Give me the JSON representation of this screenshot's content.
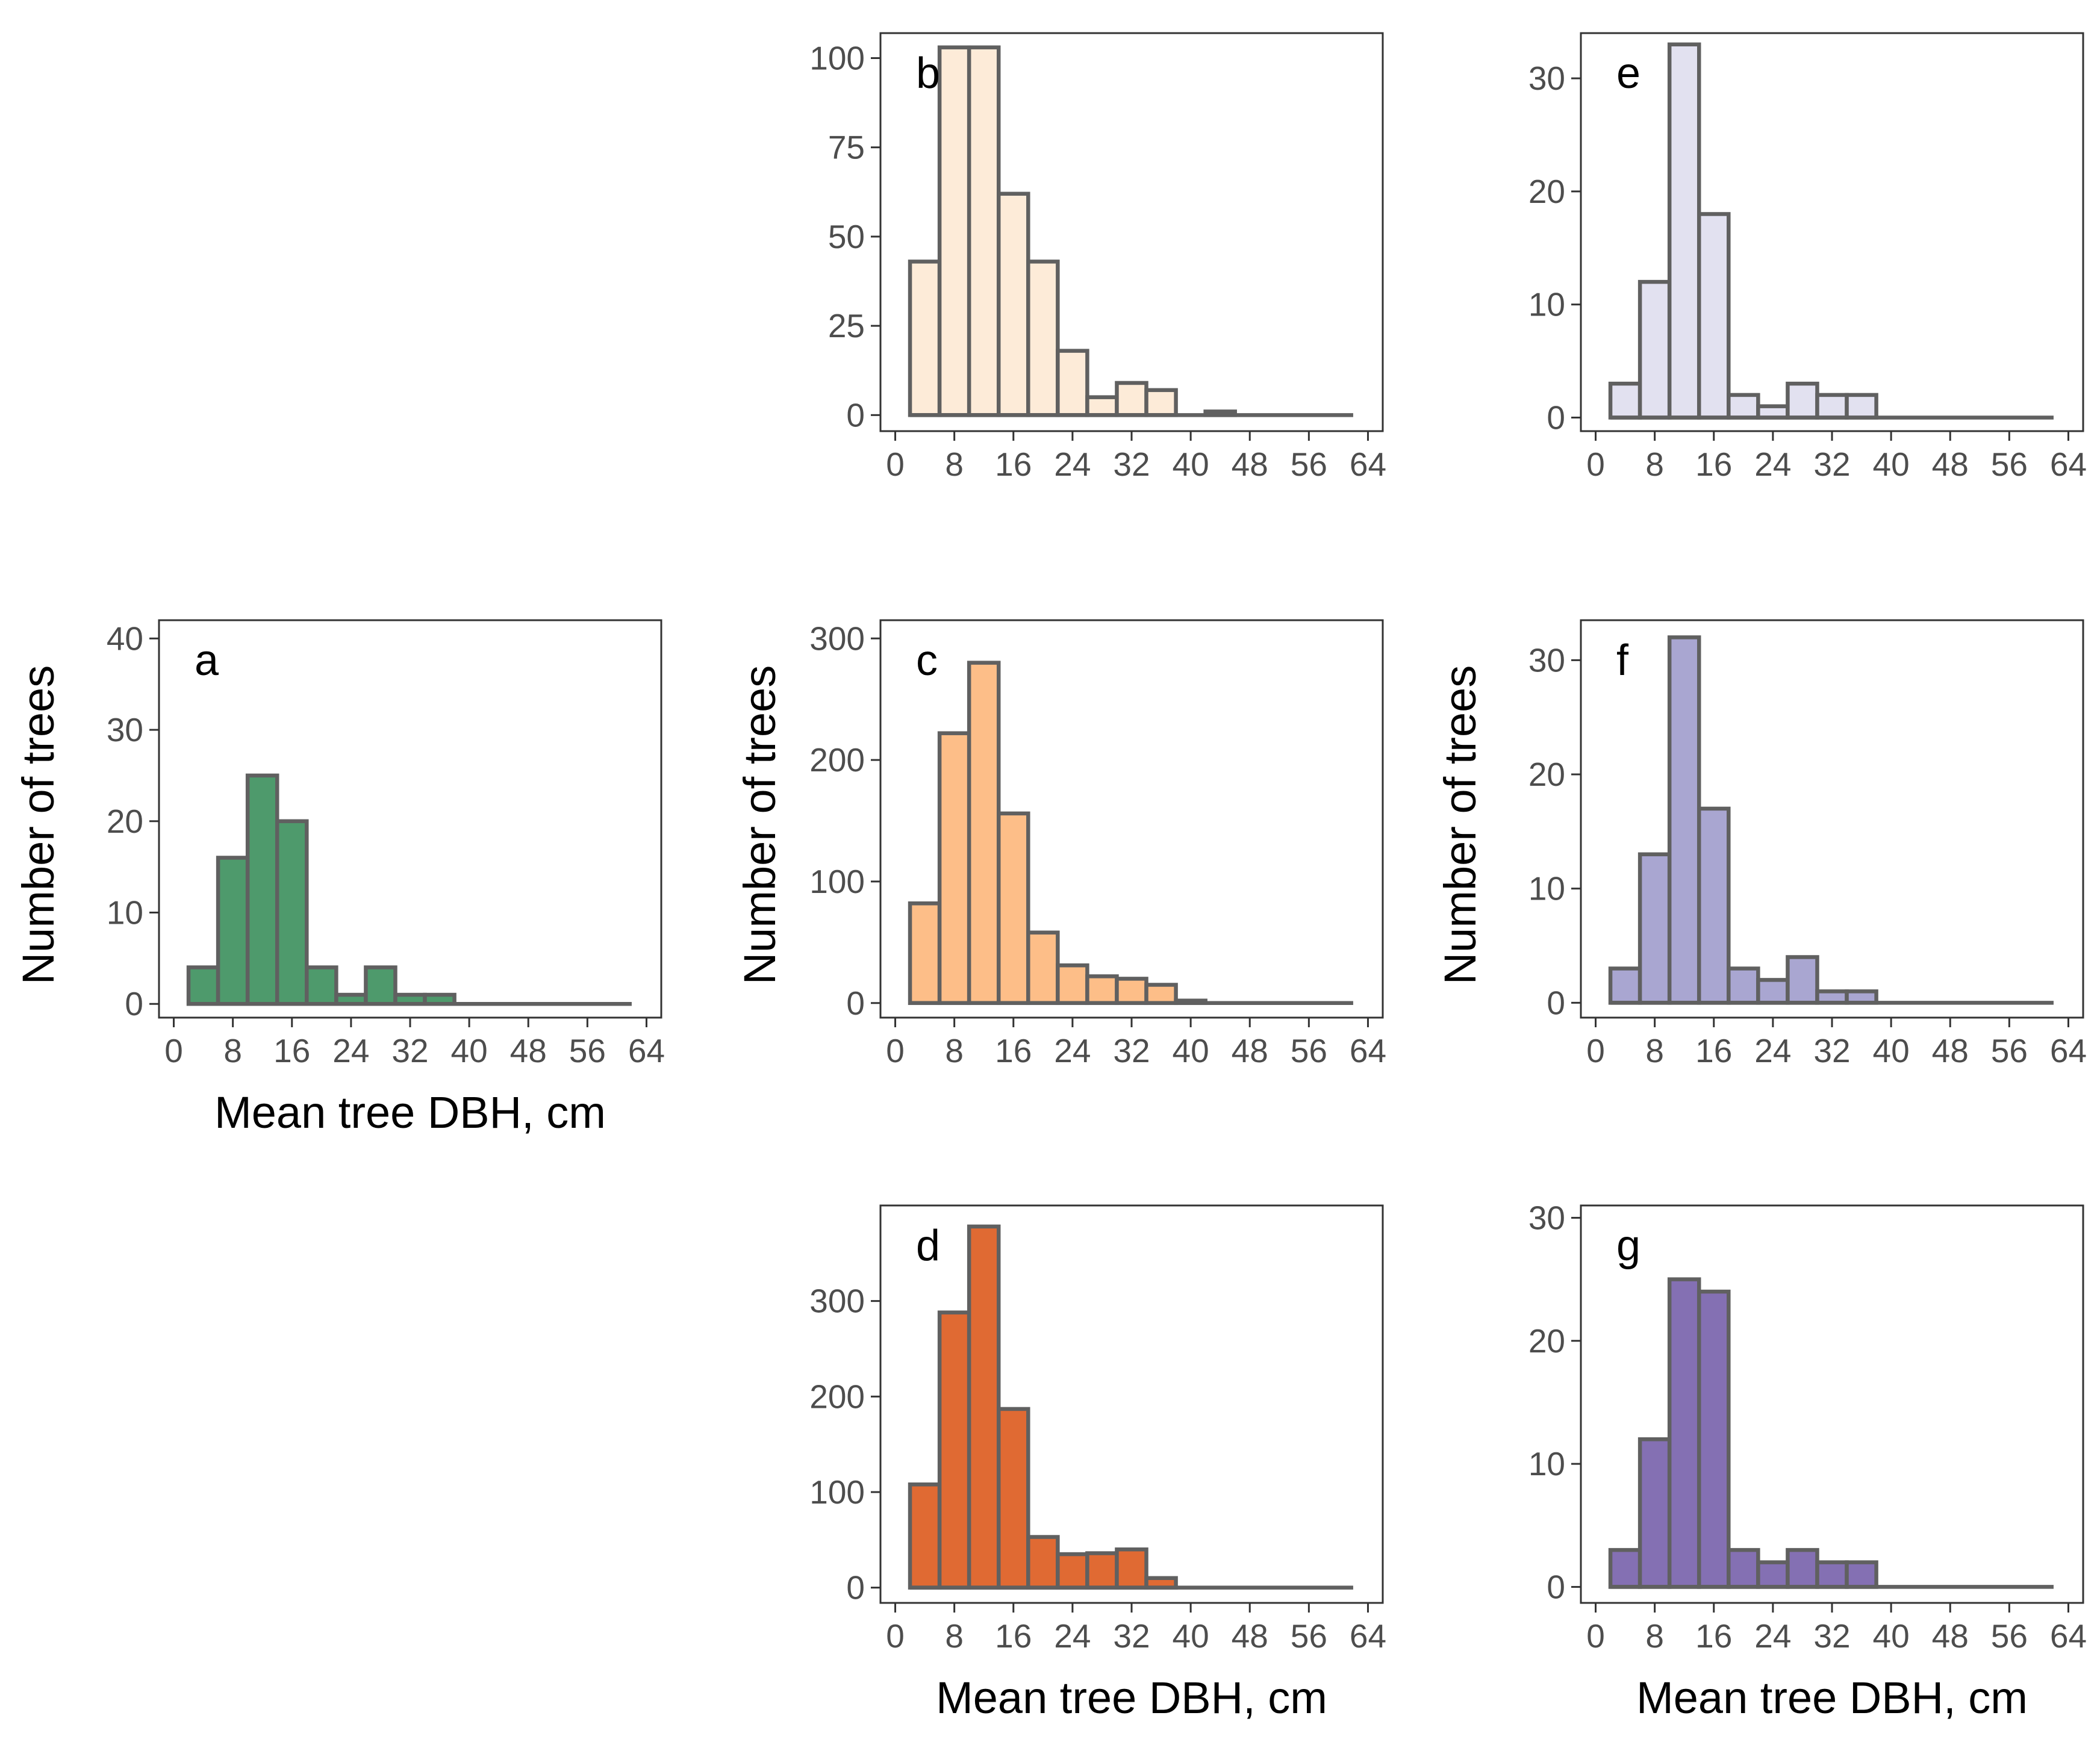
{
  "chart_data": [
    {
      "type": "bar",
      "panel": "a",
      "xlabel": "Mean tree DBH, cm",
      "ylabel": "Number of trees",
      "bin_width": 4,
      "bin_starts": [
        2,
        6,
        10,
        14,
        18,
        22,
        26,
        30,
        34,
        38,
        42,
        46,
        50,
        54,
        58
      ],
      "values": [
        4,
        16,
        25,
        20,
        4,
        1,
        4,
        1,
        1,
        0,
        0,
        0,
        0,
        0,
        0
      ],
      "xlim": [
        -2,
        66
      ],
      "ylim": [
        -1.5,
        42
      ],
      "xticks": [
        0,
        8,
        16,
        24,
        32,
        40,
        48,
        56,
        64
      ],
      "yticks": [
        0,
        10,
        20,
        30,
        40
      ],
      "fill_color": "#4e9a6c",
      "edge_color": "#606060"
    },
    {
      "type": "bar",
      "panel": "b",
      "xlabel": "",
      "ylabel": "",
      "bin_width": 4,
      "bin_starts": [
        2,
        6,
        10,
        14,
        18,
        22,
        26,
        30,
        34,
        38,
        42,
        46,
        50,
        54,
        58
      ],
      "values": [
        43,
        103,
        103,
        62,
        43,
        18,
        5,
        9,
        7,
        0,
        1,
        0,
        0,
        0,
        0
      ],
      "xlim": [
        -2,
        66
      ],
      "ylim": [
        -4.5,
        107
      ],
      "xticks": [
        0,
        8,
        16,
        24,
        32,
        40,
        48,
        56,
        64
      ],
      "yticks": [
        0,
        25,
        50,
        75,
        100
      ],
      "fill_color": "#fdebd8",
      "edge_color": "#606060"
    },
    {
      "type": "bar",
      "panel": "c",
      "xlabel": "",
      "ylabel": "Number of trees",
      "bin_width": 4,
      "bin_starts": [
        2,
        6,
        10,
        14,
        18,
        22,
        26,
        30,
        34,
        38,
        42,
        46,
        50,
        54,
        58
      ],
      "values": [
        82,
        222,
        280,
        156,
        58,
        31,
        22,
        20,
        15,
        2,
        0,
        0,
        0,
        0,
        0
      ],
      "xlim": [
        -2,
        66
      ],
      "ylim": [
        -12,
        315
      ],
      "xticks": [
        0,
        8,
        16,
        24,
        32,
        40,
        48,
        56,
        64
      ],
      "yticks": [
        0,
        100,
        200,
        300
      ],
      "fill_color": "#fdbe88",
      "edge_color": "#606060"
    },
    {
      "type": "bar",
      "panel": "d",
      "xlabel": "Mean tree DBH, cm",
      "ylabel": "",
      "bin_width": 4,
      "bin_starts": [
        2,
        6,
        10,
        14,
        18,
        22,
        26,
        30,
        34,
        38,
        42,
        46,
        50,
        54,
        58
      ],
      "values": [
        108,
        288,
        378,
        187,
        53,
        35,
        36,
        40,
        10,
        0,
        0,
        0,
        0,
        0,
        0
      ],
      "xlim": [
        -2,
        66
      ],
      "ylim": [
        -16,
        400
      ],
      "xticks": [
        0,
        8,
        16,
        24,
        32,
        40,
        48,
        56,
        64
      ],
      "yticks": [
        0,
        100,
        200,
        300
      ],
      "fill_color": "#e06a33",
      "edge_color": "#606060"
    },
    {
      "type": "bar",
      "panel": "e",
      "xlabel": "",
      "ylabel": "",
      "bin_width": 4,
      "bin_starts": [
        2,
        6,
        10,
        14,
        18,
        22,
        26,
        30,
        34,
        38,
        42,
        46,
        50,
        54,
        58
      ],
      "values": [
        3,
        12,
        33,
        18,
        2,
        1,
        3,
        2,
        2,
        0,
        0,
        0,
        0,
        0,
        0
      ],
      "xlim": [
        -2,
        66
      ],
      "ylim": [
        -1.2,
        34
      ],
      "xticks": [
        0,
        8,
        16,
        24,
        32,
        40,
        48,
        56,
        64
      ],
      "yticks": [
        0,
        10,
        20,
        30
      ],
      "fill_color": "#e2e1f0",
      "edge_color": "#606060"
    },
    {
      "type": "bar",
      "panel": "f",
      "xlabel": "",
      "ylabel": "Number of trees",
      "bin_width": 4,
      "bin_starts": [
        2,
        6,
        10,
        14,
        18,
        22,
        26,
        30,
        34,
        38,
        42,
        46,
        50,
        54,
        58
      ],
      "values": [
        3,
        13,
        32,
        17,
        3,
        2,
        4,
        1,
        1,
        0,
        0,
        0,
        0,
        0,
        0
      ],
      "xlim": [
        -2,
        66
      ],
      "ylim": [
        -1.3,
        33.5
      ],
      "xticks": [
        0,
        8,
        16,
        24,
        32,
        40,
        48,
        56,
        64
      ],
      "yticks": [
        0,
        10,
        20,
        30
      ],
      "fill_color": "#a9a6d1",
      "edge_color": "#606060"
    },
    {
      "type": "bar",
      "panel": "g",
      "xlabel": "Mean tree DBH, cm",
      "ylabel": "",
      "bin_width": 4,
      "bin_starts": [
        2,
        6,
        10,
        14,
        18,
        22,
        26,
        30,
        34,
        38,
        42,
        46,
        50,
        54,
        58
      ],
      "values": [
        3,
        12,
        25,
        24,
        3,
        2,
        3,
        2,
        2,
        0,
        0,
        0,
        0,
        0,
        0
      ],
      "xlim": [
        -2,
        66
      ],
      "ylim": [
        -1.3,
        31
      ],
      "xticks": [
        0,
        8,
        16,
        24,
        32,
        40,
        48,
        56,
        64
      ],
      "yticks": [
        0,
        10,
        20,
        30
      ],
      "fill_color": "#8470b3",
      "edge_color": "#606060"
    }
  ]
}
